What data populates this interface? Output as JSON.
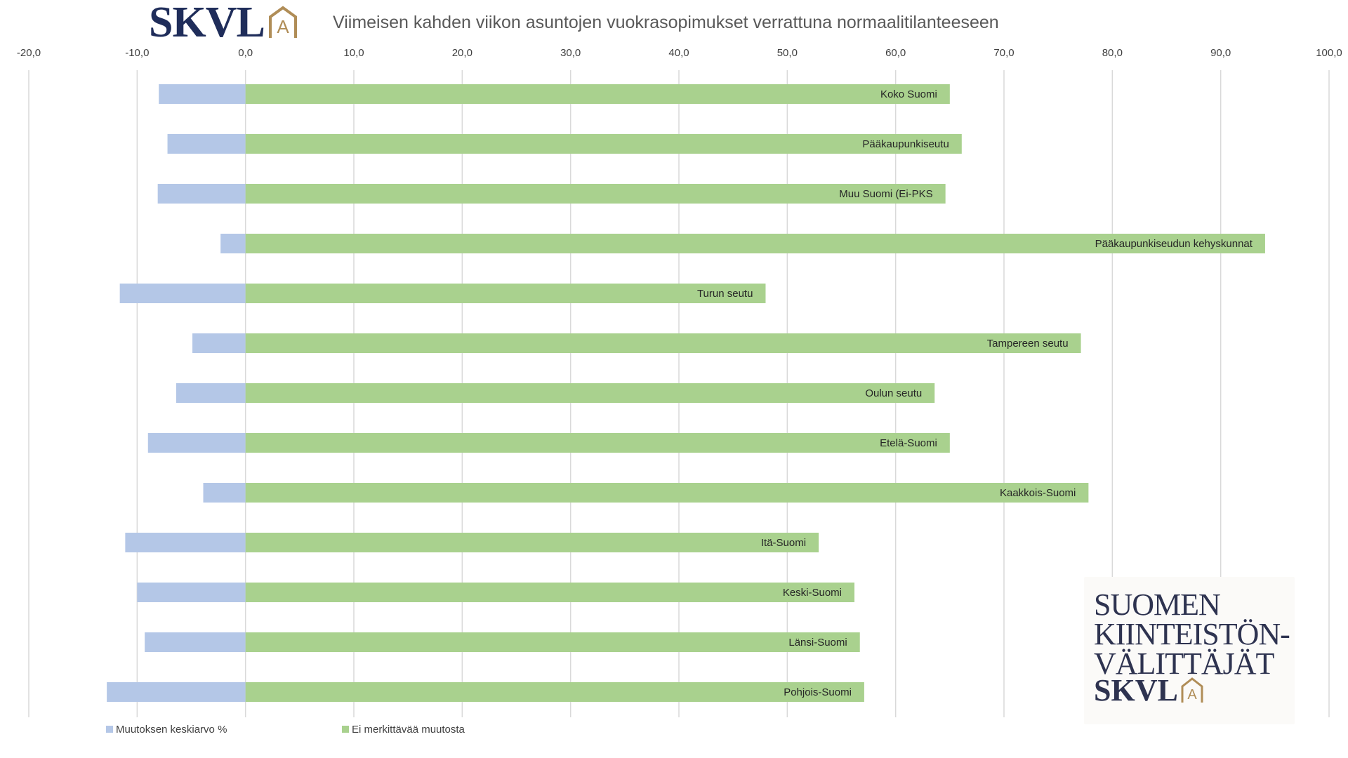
{
  "header": {
    "brand": "SKVL",
    "title": "Viimeisen kahden viikon asuntojen vuokrasopimukset verrattuna normaalitilanteeseen"
  },
  "badge": {
    "lines": [
      "SUOMEN",
      "KIINTEISTÖN-",
      "VÄLITTÄJÄT"
    ],
    "brand": "SKVL"
  },
  "colors": {
    "series_blue": "#b4c7e7",
    "series_green": "#a9d18e",
    "grid": "#d9d9d9",
    "text": "#404040",
    "brand_navy": "#1f2d5a",
    "brand_gold": "#b08d57"
  },
  "chart_data": {
    "type": "bar",
    "orientation": "horizontal",
    "stacked": true,
    "xlim": [
      -20,
      100
    ],
    "xticks": [
      "-20,0",
      "-10,0",
      "0,0",
      "10,0",
      "20,0",
      "30,0",
      "40,0",
      "50,0",
      "60,0",
      "70,0",
      "80,0",
      "90,0",
      "100,0"
    ],
    "tick_values": [
      -20,
      -10,
      0,
      10,
      20,
      30,
      40,
      50,
      60,
      70,
      80,
      90,
      100
    ],
    "grid": true,
    "legend_position": "bottom-left",
    "categories": [
      "Koko Suomi",
      "Pääkaupunkiseutu",
      "Muu Suomi (Ei-PKS",
      "Pääkaupunkiseudun kehyskunnat",
      "Turun seutu",
      "Tampereen seutu",
      "Oulun seutu",
      "Etelä-Suomi",
      "Kaakkois-Suomi",
      "Itä-Suomi",
      "Keski-Suomi",
      "Länsi-Suomi",
      "Pohjois-Suomi"
    ],
    "series": [
      {
        "name": "Muutoksen keskiarvo %",
        "values": [
          -8.0,
          -7.2,
          -8.1,
          -2.3,
          -11.6,
          -4.9,
          -6.4,
          -9.0,
          -3.9,
          -11.1,
          -10.0,
          -9.3,
          -12.8
        ]
      },
      {
        "name": "Ei merkittävää muutosta",
        "values": [
          65.0,
          66.1,
          64.6,
          94.1,
          48.0,
          77.1,
          63.6,
          65.0,
          77.8,
          52.9,
          56.2,
          56.7,
          57.1
        ]
      }
    ]
  }
}
